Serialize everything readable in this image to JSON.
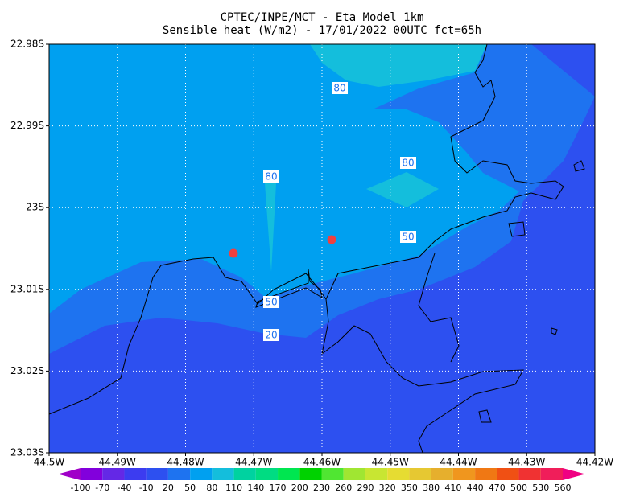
{
  "header": {
    "line1": "CPTEC/INPE/MCT -  Eta Model 1km",
    "line2": "Sensible heat (W/m2) - 17/01/2022 00UTC fct=65h"
  },
  "axes": {
    "longitude": [
      "44.5W",
      "44.49W",
      "44.48W",
      "44.47W",
      "44.46W",
      "44.45W",
      "44.44W",
      "44.43W",
      "44.42W"
    ],
    "latitude": [
      "22.98S",
      "22.99S",
      "23S",
      "23.01S",
      "23.02S",
      "23.03S"
    ]
  },
  "contour_labels": [
    "80",
    "80",
    "80",
    "50",
    "50",
    "20"
  ],
  "colorbar": {
    "labels": [
      "-100",
      "-70",
      "-40",
      "-10",
      "20",
      "50",
      "80",
      "110",
      "140",
      "170",
      "200",
      "230",
      "260",
      "290",
      "320",
      "350",
      "380",
      "410",
      "440",
      "470",
      "500",
      "530",
      "560"
    ],
    "colors": [
      "#a000c8",
      "#8200dc",
      "#6428e6",
      "#3c3cf0",
      "#2d50f0",
      "#1e73f0",
      "#00a0f0",
      "#14bedc",
      "#00d2a0",
      "#00dc82",
      "#00e650",
      "#00d200",
      "#50e632",
      "#a0e632",
      "#c8e632",
      "#e6dc32",
      "#e6c832",
      "#e6af2d",
      "#f0961e",
      "#f07814",
      "#f05014",
      "#f03232",
      "#f01e5a",
      "#f00082"
    ]
  }
}
